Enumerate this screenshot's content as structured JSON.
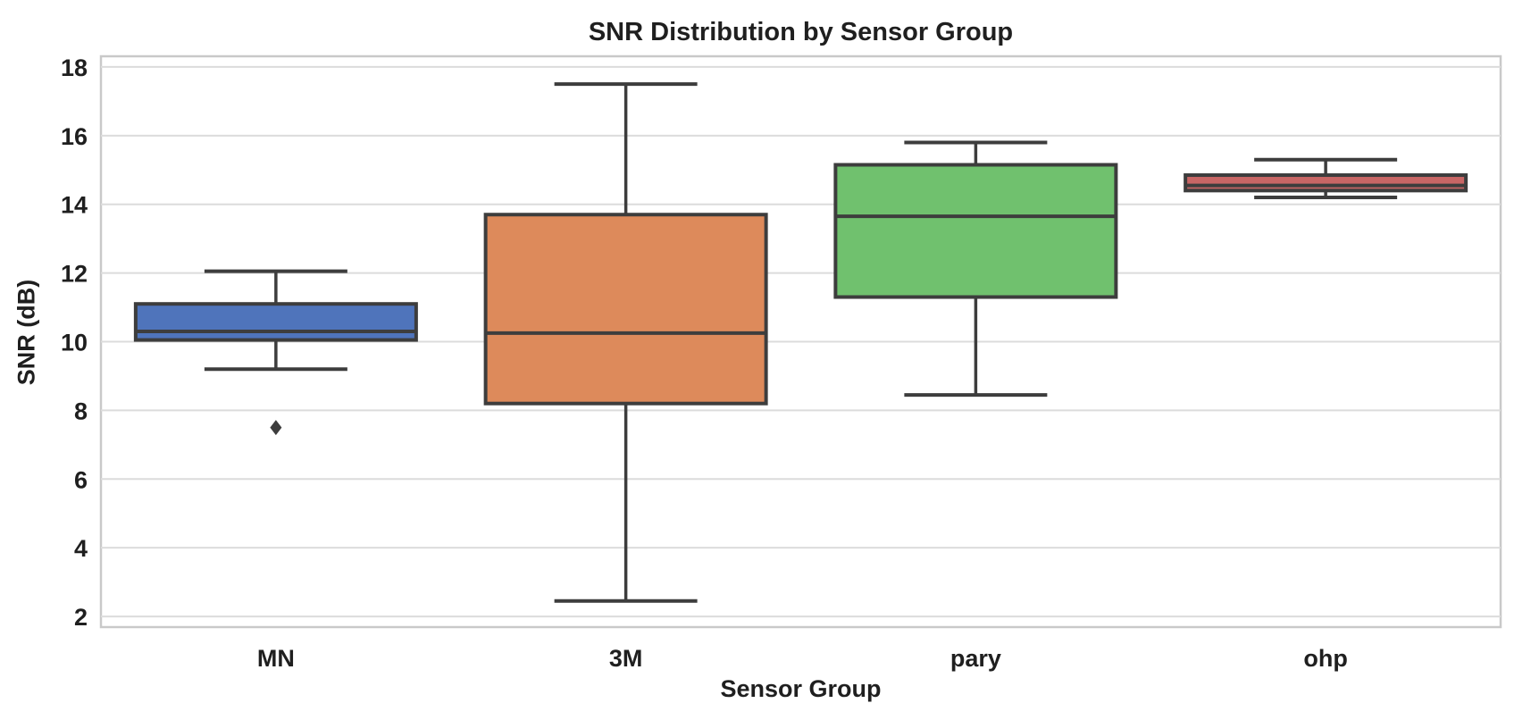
{
  "chart_data": {
    "type": "boxplot",
    "title": "SNR Distribution by Sensor Group",
    "xlabel": "Sensor Group",
    "ylabel": "SNR (dB)",
    "ylim": [
      1.69,
      18.31
    ],
    "y_ticks": [
      2,
      4,
      6,
      8,
      10,
      12,
      14,
      16,
      18
    ],
    "grid": "horizontal-only",
    "legend": "none",
    "categories": [
      "MN",
      "3M",
      "pary",
      "ohp"
    ],
    "series": [
      {
        "category": "MN",
        "color": "#4f74bb",
        "whisker_low": 9.2,
        "q1": 10.05,
        "median": 10.3,
        "q3": 11.1,
        "whisker_high": 12.05,
        "outliers": [
          7.5
        ]
      },
      {
        "category": "3M",
        "color": "#dd8a5b",
        "whisker_low": 2.45,
        "q1": 8.2,
        "median": 10.25,
        "q3": 13.7,
        "whisker_high": 17.5,
        "outliers": []
      },
      {
        "category": "pary",
        "color": "#70c16e",
        "whisker_low": 8.45,
        "q1": 11.3,
        "median": 13.65,
        "q3": 15.15,
        "whisker_high": 15.8,
        "outliers": []
      },
      {
        "category": "ohp",
        "color": "#c96665",
        "whisker_low": 14.2,
        "q1": 14.4,
        "median": 14.55,
        "q3": 14.85,
        "whisker_high": 15.3,
        "outliers": []
      }
    ],
    "style": {
      "box_edge_color": "#3d3d3d",
      "grid_color": "#dcdcdc",
      "axis_border_color": "#c9c9c9",
      "text_color": "#1f1f1f"
    }
  }
}
